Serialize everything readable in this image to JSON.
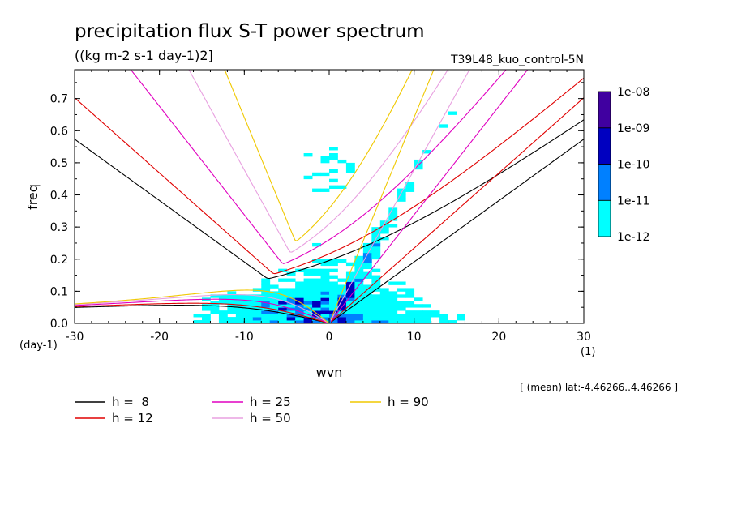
{
  "chart_data": {
    "type": "heatmap",
    "title": "precipitation flux S-T power spectrum",
    "subtitle": "((kg m-2 s-1 day-1)2]",
    "experiment": "T39L48_kuo_control-5N",
    "xlabel": "wvn",
    "xunit": "(1)",
    "ylabel": "freq",
    "yunit": "(day-1)",
    "xlim": [
      -30,
      30
    ],
    "ylim": [
      0,
      0.79
    ],
    "xticks": [
      -30,
      -20,
      -10,
      0,
      10,
      20,
      30
    ],
    "xtick_labels": [
      "-30",
      "-20",
      "-10",
      "0",
      "10",
      "20",
      "30"
    ],
    "yticks": [
      0,
      0.1,
      0.2,
      0.3,
      0.4,
      0.5,
      0.6,
      0.7
    ],
    "ytick_labels": [
      "0.0",
      "0.1",
      "0.2",
      "0.3",
      "0.4",
      "0.5",
      "0.6",
      "0.7"
    ],
    "colorbar": {
      "levels": [
        "1e-12",
        "1e-11",
        "1e-10",
        "1e-09",
        "1e-08"
      ],
      "colors": [
        "#00ffff",
        "#0080ff",
        "#0000c0",
        "#4000a0"
      ]
    },
    "dispersion_curves": [
      {
        "label": "h =  8",
        "h": 8,
        "color": "#000000"
      },
      {
        "label": "h = 12",
        "h": 12,
        "color": "#e00000"
      },
      {
        "label": "h = 25",
        "h": 25,
        "color": "#e000c0"
      },
      {
        "label": "h = 50",
        "h": 50,
        "color": "#e8a0e0"
      },
      {
        "label": "h = 90",
        "h": 90,
        "color": "#f0c800"
      }
    ],
    "footnote": "[ (mean) lat:-4.46266..4.46266 ]"
  }
}
